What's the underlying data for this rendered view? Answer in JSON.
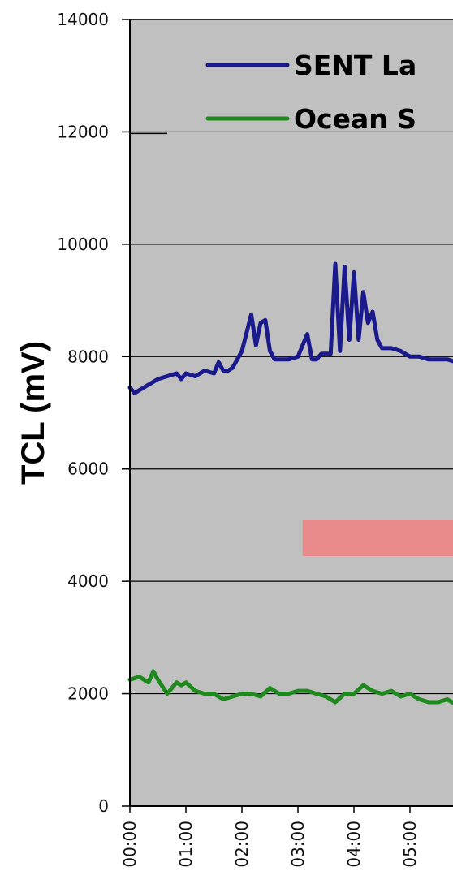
{
  "chart_data": {
    "type": "line",
    "ylabel": "TCL (mV)",
    "ylim": [
      0,
      14000
    ],
    "yticks": [
      0,
      2000,
      4000,
      6000,
      8000,
      10000,
      12000,
      14000
    ],
    "xticks": [
      "00:00",
      "01:00",
      "02:00",
      "03:00",
      "04:00",
      "05:00",
      "..."
    ],
    "grid": "horizontal",
    "plot_background": "#c0c0c0",
    "legend_placement": "top-left",
    "series": [
      {
        "name": "SENT La",
        "color": "#1a1a8c",
        "x": [
          "00:00",
          "00:05",
          "00:10",
          "00:20",
          "00:30",
          "00:40",
          "00:50",
          "00:55",
          "01:00",
          "01:10",
          "01:20",
          "01:30",
          "01:35",
          "01:40",
          "01:45",
          "01:50",
          "02:00",
          "02:10",
          "02:15",
          "02:20",
          "02:25",
          "02:30",
          "02:35",
          "02:40",
          "02:45",
          "02:50",
          "03:00",
          "03:10",
          "03:15",
          "03:20",
          "03:25",
          "03:30",
          "03:35",
          "03:40",
          "03:45",
          "03:50",
          "03:55",
          "04:00",
          "04:05",
          "04:10",
          "04:15",
          "04:20",
          "04:25",
          "04:30",
          "04:40",
          "04:50",
          "05:00",
          "05:10",
          "05:20",
          "05:30",
          "05:40",
          "05:50"
        ],
        "y": [
          7450,
          7350,
          7400,
          7500,
          7600,
          7650,
          7700,
          7600,
          7700,
          7650,
          7750,
          7700,
          7900,
          7750,
          7750,
          7800,
          8100,
          8750,
          8200,
          8600,
          8650,
          8100,
          7950,
          7950,
          7950,
          7950,
          8000,
          8400,
          7950,
          7950,
          8050,
          8050,
          8050,
          9650,
          8100,
          9600,
          8300,
          9500,
          8300,
          9150,
          8600,
          8800,
          8300,
          8150,
          8150,
          8100,
          8000,
          8000,
          7950,
          7950,
          7950,
          7900
        ]
      },
      {
        "name": "Ocean S",
        "color": "#1e8a1e",
        "x": [
          "00:00",
          "00:10",
          "00:20",
          "00:25",
          "00:30",
          "00:40",
          "00:50",
          "00:55",
          "01:00",
          "01:10",
          "01:20",
          "01:30",
          "01:40",
          "01:50",
          "02:00",
          "02:10",
          "02:20",
          "02:30",
          "02:40",
          "02:50",
          "03:00",
          "03:10",
          "03:20",
          "03:30",
          "03:40",
          "03:50",
          "04:00",
          "04:10",
          "04:20",
          "04:30",
          "04:40",
          "04:50",
          "05:00",
          "05:10",
          "05:20",
          "05:30",
          "05:40",
          "05:50"
        ],
        "y": [
          2250,
          2300,
          2200,
          2400,
          2250,
          2000,
          2200,
          2150,
          2200,
          2050,
          2000,
          2000,
          1900,
          1950,
          2000,
          2000,
          1950,
          2100,
          2000,
          2000,
          2050,
          2050,
          2000,
          1950,
          1850,
          2000,
          2000,
          2150,
          2050,
          2000,
          2050,
          1950,
          2000,
          1900,
          1850,
          1850,
          1900,
          1800
        ]
      }
    ],
    "annotation_band": {
      "x_start": "03:05",
      "x_end": "05:55",
      "y_low": 4450,
      "y_high": 5100,
      "color": "#f08080"
    }
  }
}
